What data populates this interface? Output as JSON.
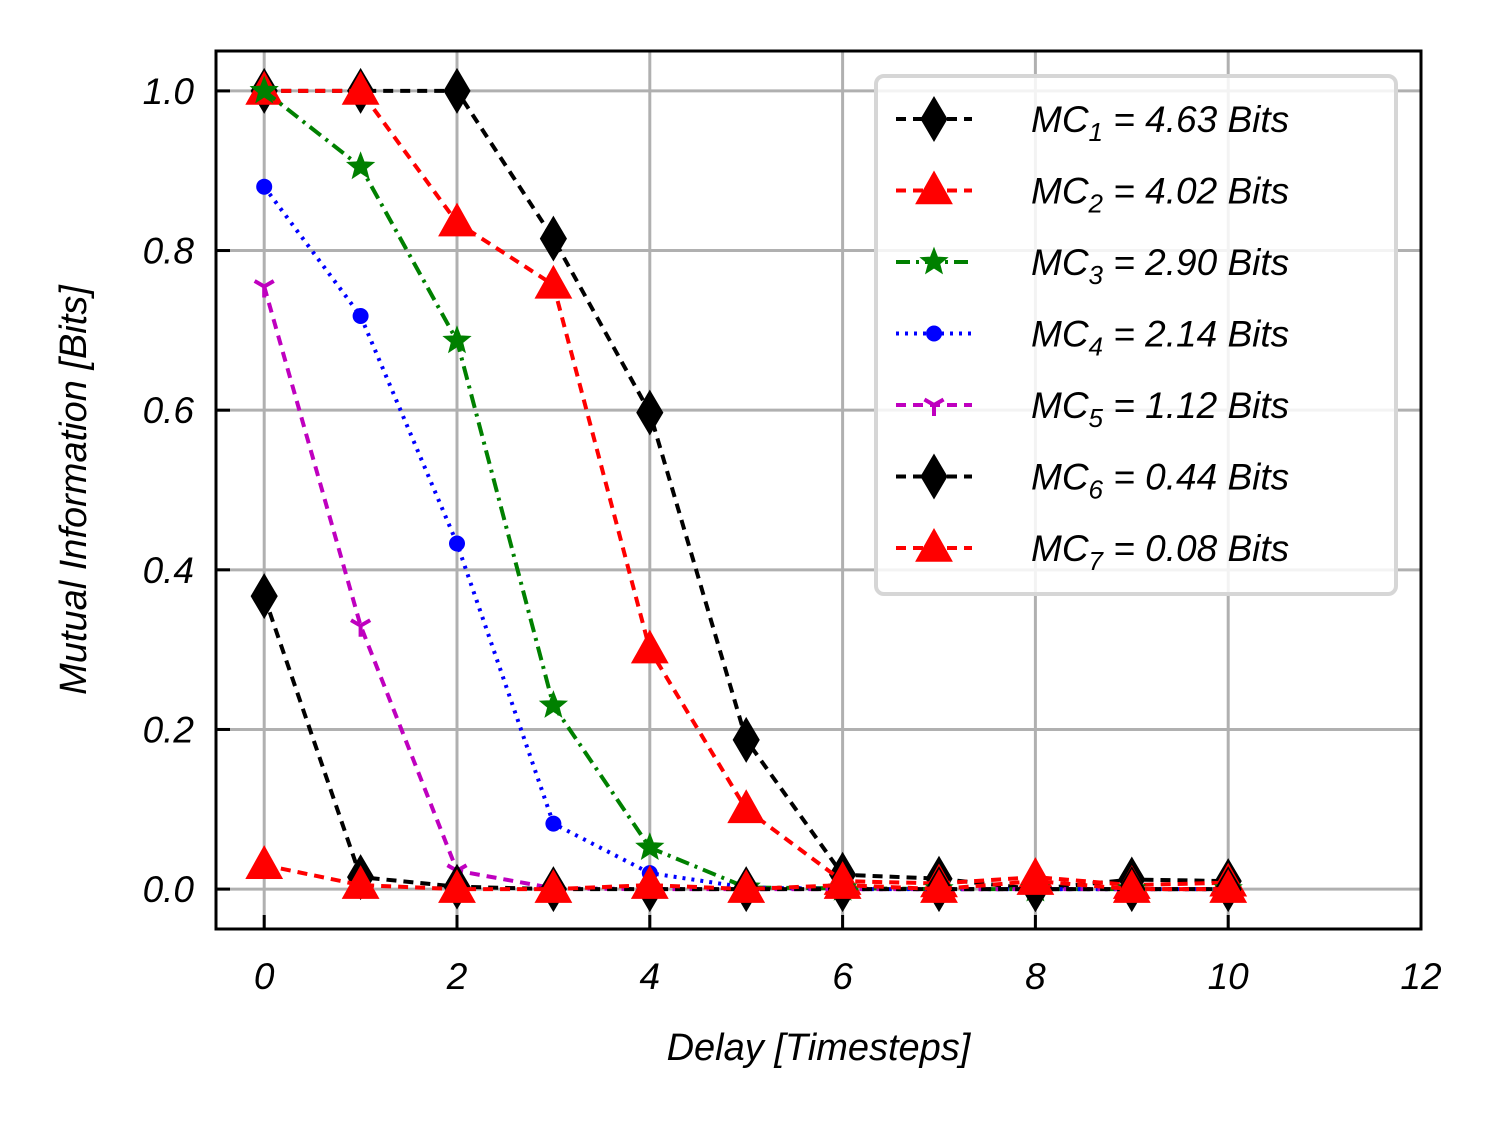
{
  "chart_data": {
    "type": "line",
    "title": "",
    "xlabel": "Delay [Timesteps]",
    "ylabel": "Mutual Information [Bits]",
    "xlim": [
      -0.5,
      12
    ],
    "ylim": [
      -0.05,
      1.05
    ],
    "xticks": [
      0,
      2,
      4,
      6,
      8,
      10,
      12
    ],
    "yticks": [
      0.0,
      0.2,
      0.4,
      0.6,
      0.8,
      1.0
    ],
    "xtick_labels": [
      "0",
      "2",
      "4",
      "6",
      "8",
      "10",
      "12"
    ],
    "ytick_labels": [
      "0.0",
      "0.2",
      "0.4",
      "0.6",
      "0.8",
      "1.0"
    ],
    "grid": true,
    "legend_position": "top-right",
    "x": [
      0,
      1,
      2,
      3,
      4,
      5,
      6,
      7,
      8,
      9,
      10
    ],
    "series": [
      {
        "name": "MC",
        "sub": "1",
        "suffix": " = 4.63 Bits",
        "color": "#000000",
        "dash": "10,7",
        "marker": "diamond",
        "values": [
          1.0,
          1.0,
          1.0,
          0.815,
          0.597,
          0.187,
          0.018,
          0.013,
          0.0,
          0.012,
          0.01
        ]
      },
      {
        "name": "MC",
        "sub": "2",
        "suffix": " = 4.02 Bits",
        "color": "#ff0000",
        "dash": "10,7",
        "marker": "triangle",
        "values": [
          1.0,
          1.0,
          0.835,
          0.757,
          0.3,
          0.1,
          0.01,
          0.007,
          0.015,
          0.005,
          0.008
        ]
      },
      {
        "name": "MC",
        "sub": "3",
        "suffix": " = 2.90 Bits",
        "color": "#008000",
        "dash": "14,6,3,6",
        "marker": "star",
        "values": [
          1.0,
          0.905,
          0.687,
          0.23,
          0.052,
          0.002,
          0.001,
          0.0,
          0.0,
          0.0,
          0.0
        ]
      },
      {
        "name": "MC",
        "sub": "4",
        "suffix": " = 2.14 Bits",
        "color": "#0000ff",
        "dash": "3,6",
        "marker": "circle",
        "values": [
          0.88,
          0.718,
          0.433,
          0.082,
          0.02,
          0.002,
          0.0,
          0.0,
          0.0,
          0.0,
          0.0
        ]
      },
      {
        "name": "MC",
        "sub": "5",
        "suffix": " = 1.12 Bits",
        "color": "#bf00bf",
        "dash": "10,7",
        "marker": "tri_down",
        "values": [
          0.755,
          0.33,
          0.023,
          0.001,
          0.0,
          0.0,
          0.0,
          0.0,
          0.0,
          0.0,
          0.0
        ]
      },
      {
        "name": "MC",
        "sub": "6",
        "suffix": " = 0.44 Bits",
        "color": "#000000",
        "dash": "10,7",
        "marker": "diamond",
        "values": [
          0.367,
          0.015,
          0.003,
          0.0,
          0.0,
          0.0,
          0.0,
          0.0,
          0.0,
          0.0,
          0.0
        ]
      },
      {
        "name": "MC",
        "sub": "7",
        "suffix": " = 0.08 Bits",
        "color": "#ff0000",
        "dash": "10,7",
        "marker": "triangle",
        "values": [
          0.03,
          0.005,
          0.0,
          0.0,
          0.005,
          0.0,
          0.005,
          0.0,
          0.01,
          0.0,
          0.0
        ]
      }
    ]
  }
}
